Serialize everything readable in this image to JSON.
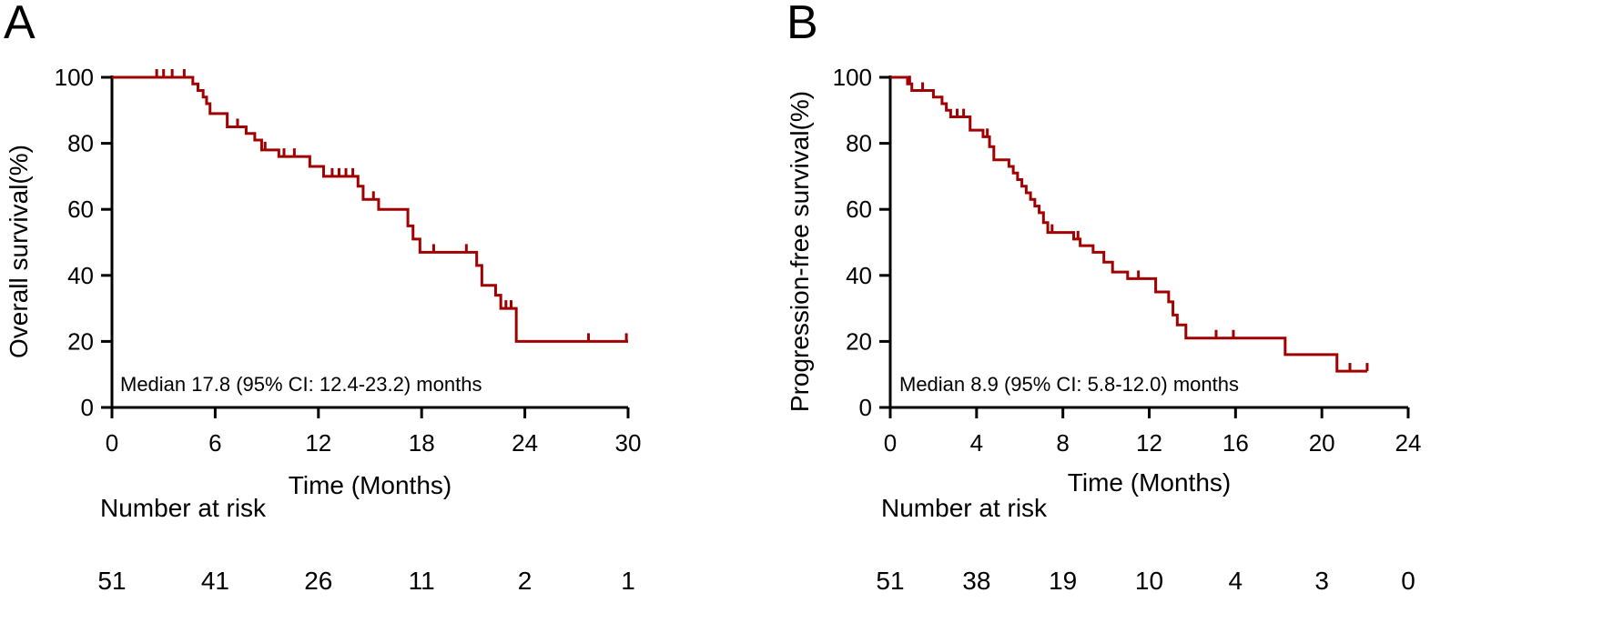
{
  "chart_data": [
    {
      "panel": "A",
      "type": "line",
      "subtype": "kaplan-meier",
      "ylabel": "Overall survival(%)",
      "xlabel": "Time (Months)",
      "xlim": [
        0,
        30
      ],
      "ylim": [
        0,
        100
      ],
      "xticks": [
        0,
        6,
        12,
        18,
        24,
        30
      ],
      "yticks": [
        0,
        20,
        40,
        60,
        80,
        100
      ],
      "median_label": "Median 17.8 (95% CI: 12.4-23.2) months",
      "risk_title": "Number at risk",
      "risk_times": [
        0,
        6,
        12,
        18,
        24,
        30
      ],
      "number_at_risk": [
        51,
        41,
        26,
        11,
        2,
        1
      ],
      "color": "#a00000",
      "curve": [
        [
          0,
          100
        ],
        [
          4.7,
          100
        ],
        [
          4.7,
          98
        ],
        [
          5.0,
          98
        ],
        [
          5.0,
          96
        ],
        [
          5.3,
          96
        ],
        [
          5.3,
          94
        ],
        [
          5.5,
          94
        ],
        [
          5.5,
          92
        ],
        [
          5.7,
          92
        ],
        [
          5.7,
          89
        ],
        [
          6.7,
          89
        ],
        [
          6.7,
          85
        ],
        [
          7.8,
          85
        ],
        [
          7.8,
          83
        ],
        [
          8.3,
          83
        ],
        [
          8.3,
          81
        ],
        [
          8.7,
          81
        ],
        [
          8.7,
          78
        ],
        [
          9.7,
          78
        ],
        [
          9.7,
          76
        ],
        [
          11.5,
          76
        ],
        [
          11.5,
          73
        ],
        [
          12.3,
          73
        ],
        [
          12.3,
          70
        ],
        [
          14.3,
          70
        ],
        [
          14.3,
          67
        ],
        [
          14.6,
          67
        ],
        [
          14.6,
          63
        ],
        [
          15.5,
          63
        ],
        [
          15.5,
          60
        ],
        [
          17.2,
          60
        ],
        [
          17.2,
          55
        ],
        [
          17.5,
          55
        ],
        [
          17.5,
          51
        ],
        [
          17.9,
          51
        ],
        [
          17.9,
          47
        ],
        [
          21.2,
          47
        ],
        [
          21.2,
          43
        ],
        [
          21.5,
          43
        ],
        [
          21.5,
          37
        ],
        [
          22.3,
          37
        ],
        [
          22.3,
          34
        ],
        [
          22.6,
          34
        ],
        [
          22.6,
          30
        ],
        [
          23.5,
          30
        ],
        [
          23.5,
          20
        ],
        [
          30,
          20
        ]
      ],
      "censored": [
        [
          2.6,
          100
        ],
        [
          3.0,
          100
        ],
        [
          3.5,
          100
        ],
        [
          4.2,
          100
        ],
        [
          7.3,
          85
        ],
        [
          8.9,
          78
        ],
        [
          10.0,
          76
        ],
        [
          10.6,
          76
        ],
        [
          12.8,
          70
        ],
        [
          13.2,
          70
        ],
        [
          13.6,
          70
        ],
        [
          14.0,
          70
        ],
        [
          15.2,
          63
        ],
        [
          18.7,
          47
        ],
        [
          20.6,
          47
        ],
        [
          22.9,
          30
        ],
        [
          23.2,
          30
        ],
        [
          27.7,
          20
        ],
        [
          29.9,
          20
        ]
      ]
    },
    {
      "panel": "B",
      "type": "line",
      "subtype": "kaplan-meier",
      "ylabel": "Progression-free survival(%)",
      "xlabel": "Time (Months)",
      "xlim": [
        0,
        24
      ],
      "ylim": [
        0,
        100
      ],
      "xticks": [
        0,
        4,
        8,
        12,
        16,
        20,
        24
      ],
      "yticks": [
        0,
        20,
        40,
        60,
        80,
        100
      ],
      "median_label": "Median 8.9 (95% CI: 5.8-12.0) months",
      "risk_title": "Number at risk",
      "risk_times": [
        0,
        4,
        8,
        12,
        16,
        20,
        24
      ],
      "number_at_risk": [
        51,
        38,
        19,
        10,
        4,
        3,
        0
      ],
      "color": "#a00000",
      "curve": [
        [
          0,
          100
        ],
        [
          0.8,
          100
        ],
        [
          0.8,
          98
        ],
        [
          1.0,
          98
        ],
        [
          1.0,
          96
        ],
        [
          2.0,
          96
        ],
        [
          2.0,
          94
        ],
        [
          2.4,
          94
        ],
        [
          2.4,
          92
        ],
        [
          2.6,
          92
        ],
        [
          2.6,
          90
        ],
        [
          2.8,
          90
        ],
        [
          2.8,
          88
        ],
        [
          3.7,
          88
        ],
        [
          3.7,
          84
        ],
        [
          4.3,
          84
        ],
        [
          4.3,
          82
        ],
        [
          4.6,
          82
        ],
        [
          4.6,
          79
        ],
        [
          4.8,
          79
        ],
        [
          4.8,
          75
        ],
        [
          5.5,
          75
        ],
        [
          5.5,
          73
        ],
        [
          5.7,
          73
        ],
        [
          5.7,
          71
        ],
        [
          5.9,
          71
        ],
        [
          5.9,
          69
        ],
        [
          6.1,
          69
        ],
        [
          6.1,
          67
        ],
        [
          6.3,
          67
        ],
        [
          6.3,
          65
        ],
        [
          6.5,
          65
        ],
        [
          6.5,
          63
        ],
        [
          6.7,
          63
        ],
        [
          6.7,
          61
        ],
        [
          6.9,
          61
        ],
        [
          6.9,
          59
        ],
        [
          7.1,
          59
        ],
        [
          7.1,
          56
        ],
        [
          7.3,
          56
        ],
        [
          7.3,
          53
        ],
        [
          8.5,
          53
        ],
        [
          8.5,
          51
        ],
        [
          8.8,
          51
        ],
        [
          8.8,
          49
        ],
        [
          9.4,
          49
        ],
        [
          9.4,
          47
        ],
        [
          9.9,
          47
        ],
        [
          9.9,
          44
        ],
        [
          10.3,
          44
        ],
        [
          10.3,
          41
        ],
        [
          11.0,
          41
        ],
        [
          11.0,
          39
        ],
        [
          12.3,
          39
        ],
        [
          12.3,
          35
        ],
        [
          12.9,
          35
        ],
        [
          12.9,
          32
        ],
        [
          13.1,
          32
        ],
        [
          13.1,
          28
        ],
        [
          13.3,
          28
        ],
        [
          13.3,
          25
        ],
        [
          13.7,
          25
        ],
        [
          13.7,
          21
        ],
        [
          18.3,
          21
        ],
        [
          18.3,
          16
        ],
        [
          20.7,
          16
        ],
        [
          20.7,
          11
        ],
        [
          22.1,
          11
        ]
      ],
      "censored": [
        [
          0.9,
          98
        ],
        [
          1.5,
          96
        ],
        [
          3.1,
          88
        ],
        [
          3.4,
          88
        ],
        [
          4.5,
          82
        ],
        [
          7.5,
          53
        ],
        [
          8.7,
          51
        ],
        [
          11.5,
          39
        ],
        [
          15.1,
          21
        ],
        [
          15.9,
          21
        ],
        [
          21.3,
          11
        ],
        [
          22.1,
          11
        ]
      ]
    }
  ]
}
